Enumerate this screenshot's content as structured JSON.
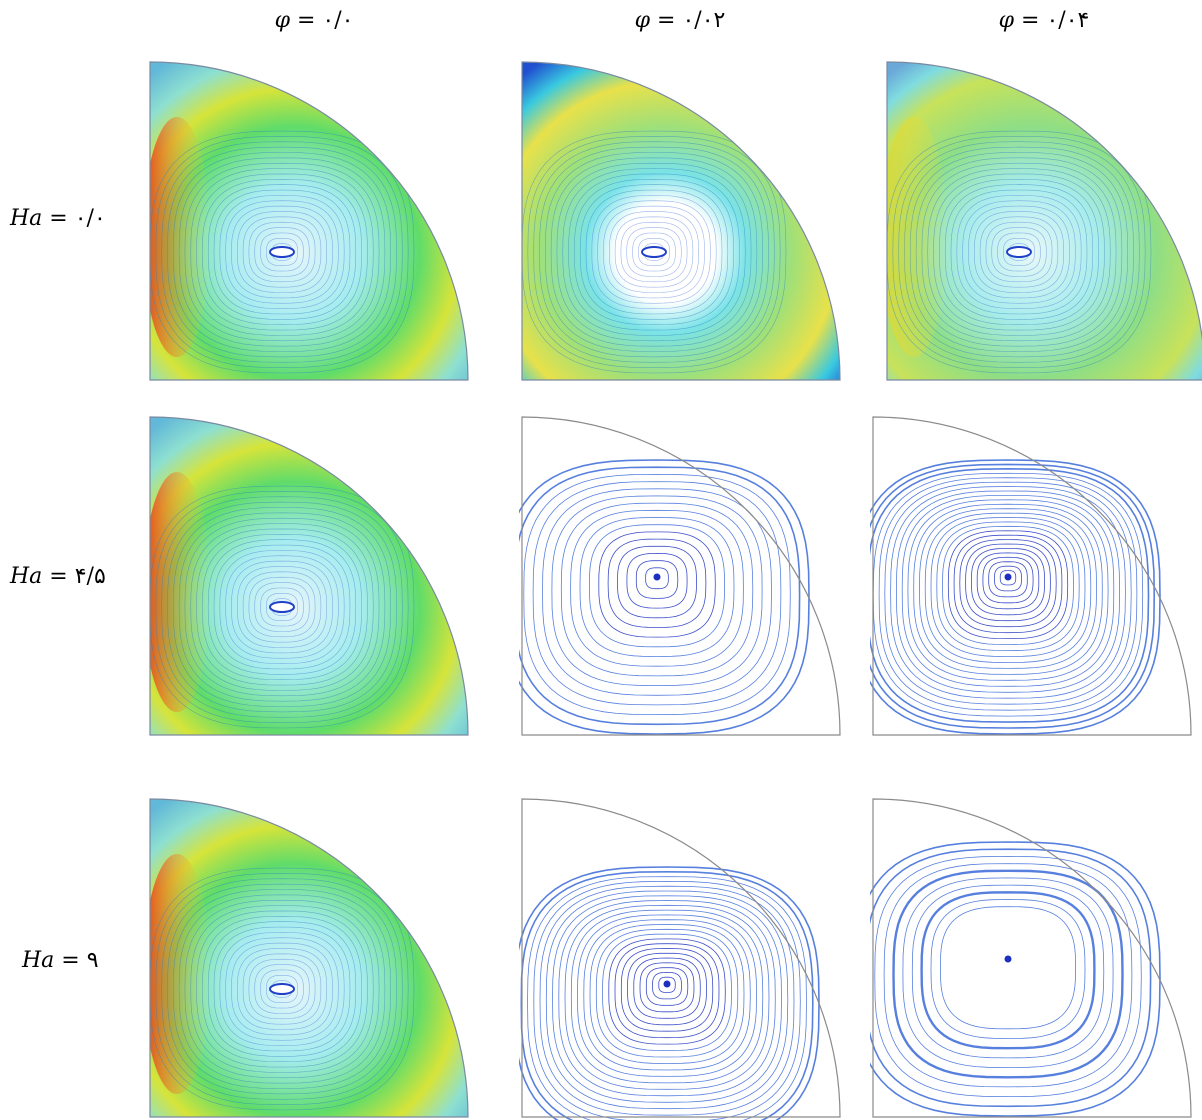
{
  "columns": [
    {
      "symbol": "φ",
      "eq": " = ",
      "value": "۰/۰"
    },
    {
      "symbol": "φ",
      "eq": " = ",
      "value": "۰/۰۲"
    },
    {
      "symbol": "φ",
      "eq": " = ",
      "value": "۰/۰۴"
    }
  ],
  "rows": [
    {
      "symbol": "Ha",
      "eq": " = ",
      "value": "۰/۰"
    },
    {
      "symbol": "Ha",
      "eq": " = ",
      "value": "۴/۵"
    },
    {
      "symbol": "Ha",
      "eq": " = ",
      "value": "۹"
    }
  ],
  "panels": [
    {
      "id": "r0c0",
      "style": "color"
    },
    {
      "id": "r0c1",
      "style": "color-ring"
    },
    {
      "id": "r0c2",
      "style": "color-soft"
    },
    {
      "id": "r1c0",
      "style": "color"
    },
    {
      "id": "r1c1",
      "style": "lines-light"
    },
    {
      "id": "r1c2",
      "style": "lines-dense"
    },
    {
      "id": "r2c0",
      "style": "color"
    },
    {
      "id": "r2c1",
      "style": "lines-vortex"
    },
    {
      "id": "r2c2",
      "style": "lines-ring"
    }
  ],
  "colors": {
    "lines": "#3a5fd0",
    "lineDark": "#1b2fc0",
    "border": "#888888"
  }
}
